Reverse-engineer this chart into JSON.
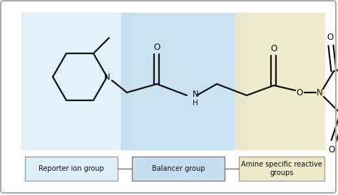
{
  "fig_width": 4.74,
  "fig_height": 2.74,
  "dpi": 100,
  "bg_color": "#ffffff",
  "region1_color": "#ddeef8",
  "region2_color": "#c5dff0",
  "region3_color": "#eee9c8",
  "label1_text": "Reporter ion group",
  "label2_text": "Balancer group",
  "label3_text": "Amine specific reactive\ngroups",
  "label1_box_color": "#ddeef8",
  "label2_box_color": "#c5dff0",
  "label3_box_color": "#eee9c8",
  "label_edge": "#999999",
  "label2_edge": "#777777"
}
